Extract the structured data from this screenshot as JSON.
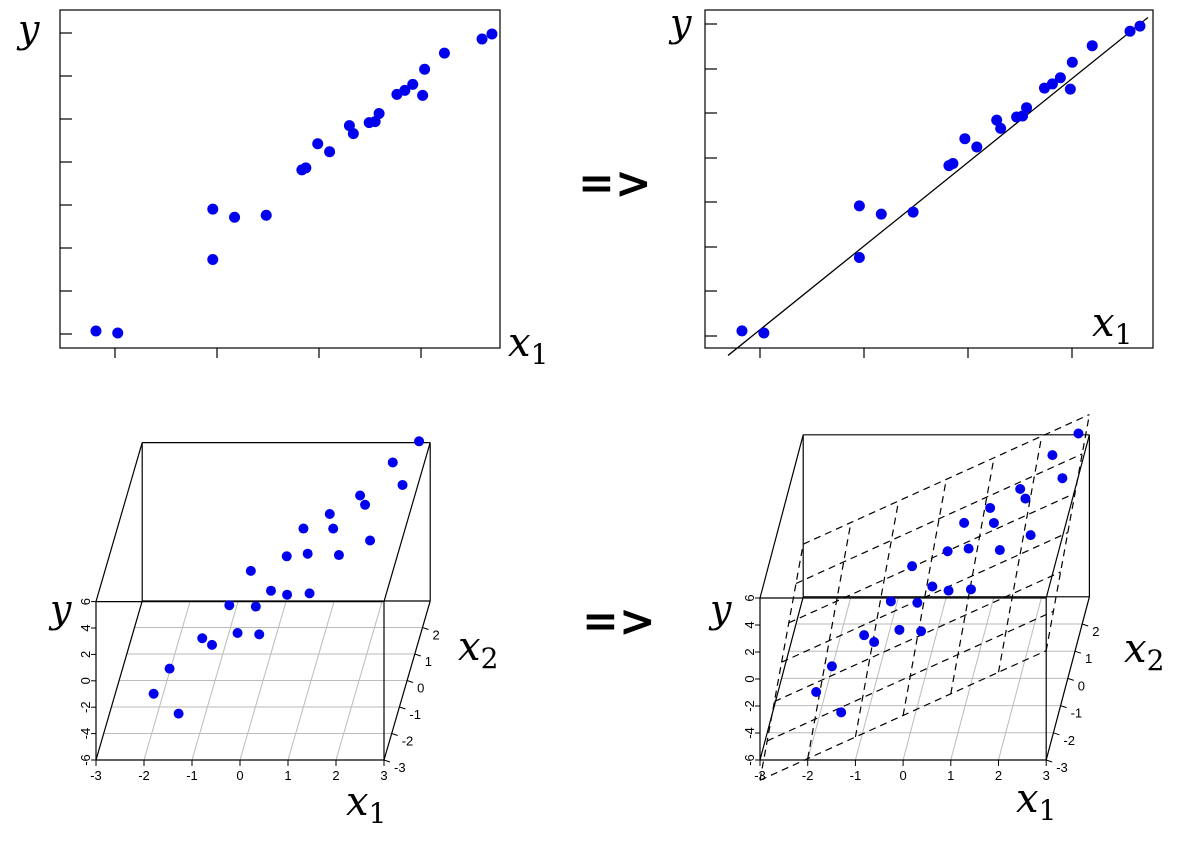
{
  "colors": {
    "point": "#0000ee",
    "axis": "#000000",
    "grid": "#bbbbbb",
    "plane": "#000000",
    "background": "#ffffff"
  },
  "arrows": {
    "top": "=>",
    "bottom": "=>"
  },
  "chart_data": [
    {
      "id": "scatter-2d-before",
      "type": "scatter",
      "title": "",
      "xlabel": "x",
      "xlabel_sub": "1",
      "ylabel": "y",
      "xlim": [
        0,
        20
      ],
      "ylim": [
        0,
        30
      ],
      "x": [
        0.2,
        1.3,
        6.1,
        6.1,
        7.2,
        8.8,
        10.6,
        10.8,
        11.4,
        12.0,
        13.0,
        13.2,
        14.0,
        14.3,
        14.5,
        15.4,
        15.8,
        16.2,
        16.7,
        16.8,
        17.8,
        19.7,
        20.2
      ],
      "y": [
        0.3,
        0.1,
        7.4,
        12.4,
        11.6,
        11.8,
        16.3,
        16.5,
        18.9,
        18.1,
        20.7,
        19.9,
        21.0,
        21.1,
        21.9,
        23.8,
        24.2,
        24.8,
        23.7,
        26.3,
        27.9,
        29.3,
        29.8
      ],
      "grid": false,
      "fit_line": null
    },
    {
      "id": "scatter-2d-fit",
      "type": "scatter",
      "title": "",
      "xlabel": "x",
      "xlabel_sub": "1",
      "ylabel": "y",
      "xlim": [
        0,
        20
      ],
      "ylim": [
        0,
        30
      ],
      "x": [
        0.2,
        1.3,
        6.1,
        6.1,
        7.2,
        8.8,
        10.6,
        10.8,
        11.4,
        12.0,
        13.0,
        13.2,
        14.0,
        14.3,
        14.5,
        15.4,
        15.8,
        16.2,
        16.7,
        16.8,
        17.8,
        19.7,
        20.2
      ],
      "y": [
        0.3,
        0.1,
        7.4,
        12.4,
        11.6,
        11.8,
        16.3,
        16.5,
        18.9,
        18.1,
        20.7,
        19.9,
        21.0,
        21.1,
        21.9,
        23.8,
        24.2,
        24.8,
        23.7,
        26.3,
        27.9,
        29.3,
        29.8
      ],
      "grid": false,
      "fit_line": {
        "intercept": -1.3,
        "slope": 1.55
      }
    },
    {
      "id": "scatter-3d-before",
      "type": "scatter",
      "title": "",
      "xlabel": "x",
      "xlabel_sub": "1",
      "zlabel": "x",
      "zlabel_sub": "2",
      "ylabel": "y",
      "xlim": [
        -3,
        3
      ],
      "zlim": [
        -3,
        3
      ],
      "ylim": [
        -6,
        6
      ],
      "x_ticks": [
        "-3",
        "-2",
        "-1",
        "0",
        "1",
        "2",
        "3"
      ],
      "z_ticks": [
        "-3",
        "-2",
        "-1",
        "0",
        "1",
        "2"
      ],
      "y_ticks": [
        "-6",
        "-4",
        "-2",
        "0",
        "2",
        "4",
        "6"
      ],
      "grid": true,
      "plane": null,
      "points": [
        {
          "x": -2.2,
          "z": -0.5,
          "y": -6.0
        },
        {
          "x": -1.9,
          "z": -0.3,
          "y": -4.5
        },
        {
          "x": -1.6,
          "z": -1.0,
          "y": -6.5
        },
        {
          "x": -1.3,
          "z": 0.2,
          "y": -3.2
        },
        {
          "x": -1.0,
          "z": -0.4,
          "y": -2.5
        },
        {
          "x": -0.8,
          "z": 0.6,
          "y": -1.5
        },
        {
          "x": -0.5,
          "z": -0.2,
          "y": -2.0
        },
        {
          "x": -0.4,
          "z": 0.9,
          "y": 0.5
        },
        {
          "x": -0.2,
          "z": 0.3,
          "y": -1.0
        },
        {
          "x": 0.0,
          "z": -0.5,
          "y": -1.5
        },
        {
          "x": 0.1,
          "z": 0.4,
          "y": 0.0
        },
        {
          "x": 0.3,
          "z": 1.2,
          "y": 1.0
        },
        {
          "x": 0.5,
          "z": 0.0,
          "y": 0.5
        },
        {
          "x": 0.6,
          "z": 1.5,
          "y": 2.5
        },
        {
          "x": 0.8,
          "z": 0.8,
          "y": 2.0
        },
        {
          "x": 1.0,
          "z": -0.2,
          "y": 1.0
        },
        {
          "x": 1.1,
          "z": 1.8,
          "y": 3.0
        },
        {
          "x": 1.3,
          "z": 1.0,
          "y": 3.5
        },
        {
          "x": 1.5,
          "z": 0.5,
          "y": 2.5
        },
        {
          "x": 1.7,
          "z": 2.0,
          "y": 4.0
        },
        {
          "x": 1.9,
          "z": 1.4,
          "y": 4.5
        },
        {
          "x": 2.1,
          "z": 0.8,
          "y": 3.0
        },
        {
          "x": 2.3,
          "z": 2.5,
          "y": 5.5
        },
        {
          "x": 2.6,
          "z": 1.9,
          "y": 5.0
        },
        {
          "x": 2.8,
          "z": 2.8,
          "y": 6.5
        }
      ]
    },
    {
      "id": "scatter-3d-plane",
      "type": "scatter",
      "title": "",
      "xlabel": "x",
      "xlabel_sub": "1",
      "zlabel": "x",
      "zlabel_sub": "2",
      "ylabel": "y",
      "xlim": [
        -3,
        3
      ],
      "zlim": [
        -3,
        3
      ],
      "ylim": [
        -6,
        6
      ],
      "x_ticks": [
        "-3",
        "-2",
        "-1",
        "0",
        "1",
        "2",
        "3"
      ],
      "z_ticks": [
        "-3",
        "-2",
        "-1",
        "0",
        "1",
        "2"
      ],
      "y_ticks": [
        "-6",
        "-4",
        "-2",
        "0",
        "2",
        "4",
        "6"
      ],
      "grid": true,
      "plane": {
        "intercept": 0.0,
        "coef_x1": 1.6,
        "coef_x2": 0.9
      },
      "points": [
        {
          "x": -2.2,
          "z": -0.5,
          "y": -6.0
        },
        {
          "x": -1.9,
          "z": -0.3,
          "y": -4.5
        },
        {
          "x": -1.6,
          "z": -1.0,
          "y": -6.5
        },
        {
          "x": -1.3,
          "z": 0.2,
          "y": -3.2
        },
        {
          "x": -1.0,
          "z": -0.4,
          "y": -2.5
        },
        {
          "x": -0.8,
          "z": 0.6,
          "y": -1.5
        },
        {
          "x": -0.5,
          "z": -0.2,
          "y": -2.0
        },
        {
          "x": -0.4,
          "z": 0.9,
          "y": 0.5
        },
        {
          "x": -0.2,
          "z": 0.3,
          "y": -1.0
        },
        {
          "x": 0.0,
          "z": -0.5,
          "y": -1.5
        },
        {
          "x": 0.1,
          "z": 0.4,
          "y": 0.0
        },
        {
          "x": 0.3,
          "z": 1.2,
          "y": 1.0
        },
        {
          "x": 0.5,
          "z": 0.0,
          "y": 0.5
        },
        {
          "x": 0.6,
          "z": 1.5,
          "y": 2.5
        },
        {
          "x": 0.8,
          "z": 0.8,
          "y": 2.0
        },
        {
          "x": 1.0,
          "z": -0.2,
          "y": 1.0
        },
        {
          "x": 1.1,
          "z": 1.8,
          "y": 3.0
        },
        {
          "x": 1.3,
          "z": 1.0,
          "y": 3.5
        },
        {
          "x": 1.5,
          "z": 0.5,
          "y": 2.5
        },
        {
          "x": 1.7,
          "z": 2.0,
          "y": 4.0
        },
        {
          "x": 1.9,
          "z": 1.4,
          "y": 4.5
        },
        {
          "x": 2.1,
          "z": 0.8,
          "y": 3.0
        },
        {
          "x": 2.3,
          "z": 2.5,
          "y": 5.5
        },
        {
          "x": 2.6,
          "z": 1.9,
          "y": 5.0
        },
        {
          "x": 2.8,
          "z": 2.8,
          "y": 6.5
        }
      ]
    }
  ]
}
